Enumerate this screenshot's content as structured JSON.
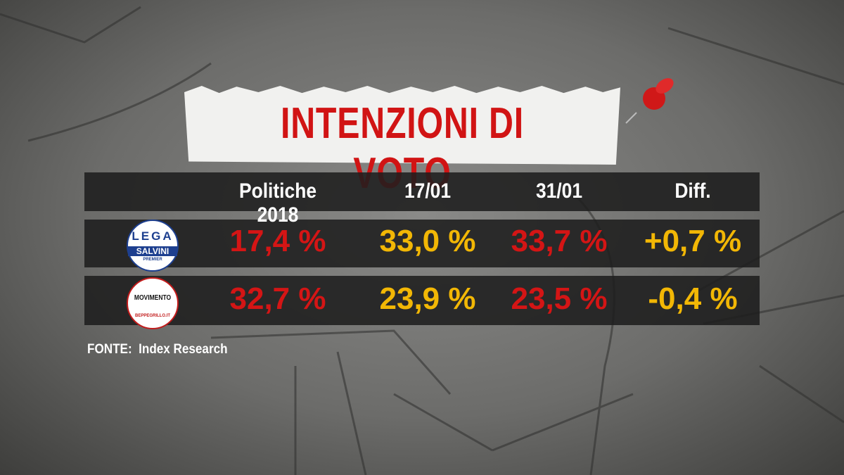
{
  "title": "INTENZIONI DI VOTO",
  "table": {
    "header": [
      "Politiche 2018",
      "17/01",
      "31/01",
      "Diff."
    ],
    "rows": [
      {
        "logo": [
          "LEGA",
          "SALVINI",
          "PREMIER"
        ],
        "cells": [
          "17,4 %",
          "33,0 %",
          "33,7 %",
          "+0,7 %"
        ]
      },
      {
        "logo": [
          "MOVIMENTO",
          "BEPPEGRILLO.IT"
        ],
        "cells": [
          "32,7 %",
          "23,9 %",
          "23,5 %",
          "-0,4 %"
        ]
      }
    ]
  },
  "source": "FONTE:  Index Research"
}
